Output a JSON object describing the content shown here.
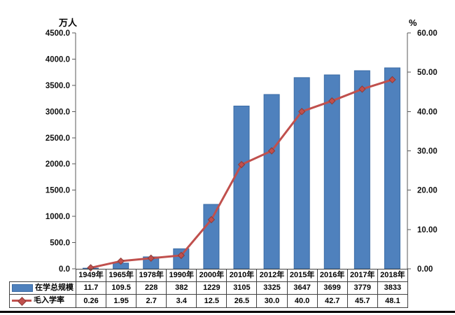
{
  "chart_data": {
    "type": "bar",
    "combo": "bar+line",
    "categories": [
      "1949年",
      "1965年",
      "1978年",
      "1990年",
      "2000年",
      "2010年",
      "2012年",
      "2015年",
      "2016年",
      "2017年",
      "2018年"
    ],
    "series": [
      {
        "name": "在学总规模",
        "type": "bar",
        "axis": "left",
        "color": "#4F81BD",
        "border_color": "#3A6BA5",
        "values": [
          11.7,
          109.5,
          228,
          382,
          1229,
          3105,
          3325,
          3647,
          3699,
          3779,
          3833
        ],
        "labels": [
          "11.7",
          "109.5",
          "228",
          "382",
          "1229",
          "3105",
          "3325",
          "3647",
          "3699",
          "3779",
          "3833"
        ]
      },
      {
        "name": "毛入学率",
        "type": "line",
        "axis": "right",
        "color": "#C0504D",
        "marker": "diamond",
        "marker_border_color": "#8E3B38",
        "values": [
          0.26,
          1.95,
          2.7,
          3.4,
          12.5,
          26.5,
          30.0,
          40.0,
          42.7,
          45.7,
          48.1
        ],
        "labels": [
          "0.26",
          "1.95",
          "2.7",
          "3.4",
          "12.5",
          "26.5",
          "30.0",
          "40.0",
          "42.7",
          "45.7",
          "48.1"
        ]
      }
    ],
    "left_axis": {
      "title": "万人",
      "min": 0,
      "max": 4500,
      "step": 500,
      "tick_labels": [
        "4500.0",
        "4000.0",
        "3500.0",
        "3000.0",
        "2500.0",
        "2000.0",
        "1500.0",
        "1000.0",
        "500.0",
        "0.0"
      ]
    },
    "right_axis": {
      "title": "%",
      "min": 0,
      "max": 60,
      "step": 10,
      "tick_labels": [
        "60.00",
        "50.00",
        "40.00",
        "30.00",
        "20.00",
        "10.00",
        "0.00"
      ]
    },
    "grid": false,
    "legend_position": "data-table-left",
    "axis_color": "#595959",
    "tick_text_color": "#111111",
    "table_border_color": "#404040",
    "bottom_rule_color": "#000000"
  }
}
